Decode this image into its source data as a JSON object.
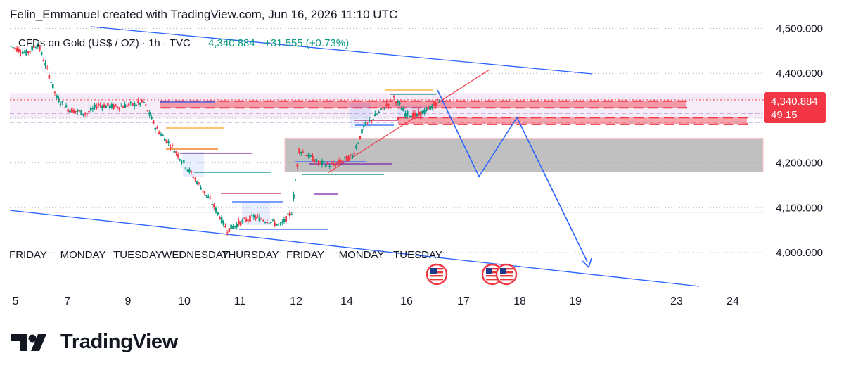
{
  "header": {
    "attribution": "Felin_Emmanuel created with TradingView.com, Jun 16, 2026 11:10 UTC"
  },
  "legend": {
    "symbol": "CFDs on Gold (US$ / OZ) · 1h · TVC",
    "price": "4,340.884",
    "change": "+31.555 (+0.73%)"
  },
  "price_label": {
    "value": "4,340.884",
    "countdown": "49:15"
  },
  "brand": {
    "name": "TradingView"
  },
  "colors": {
    "up": "#089981",
    "down": "#f23645",
    "trendline": "#2962ff",
    "zone_red": "#f23645",
    "zone_gray": "#b2b5be",
    "band_pink": "#f3e5f5"
  },
  "chart_data": {
    "type": "candlestick",
    "y_axis": {
      "ticks": [
        4000,
        4100,
        4200,
        4300,
        4400,
        4500
      ],
      "tick_labels": [
        "4,000.000",
        "4,100.000",
        "4,200.000",
        "",
        "4,400.000",
        "4,500.000"
      ],
      "range": [
        3935,
        4520
      ]
    },
    "x_axis": {
      "dates": [
        "5",
        "7",
        "9",
        "10",
        "11",
        "12",
        "14",
        "16",
        "17",
        "18",
        "19",
        "23",
        "24"
      ],
      "day_names": [
        "FRIDAY",
        "MONDAY",
        "TUESDAY",
        "WEDNESDAY",
        "THURSDAY",
        "FRIDAY",
        "MONDAY",
        "TUESDAY"
      ]
    },
    "last_price": 4340.884,
    "candles_close_path": [
      [
        0,
        4460
      ],
      [
        8,
        4445
      ],
      [
        14,
        4465
      ],
      [
        18,
        4420
      ],
      [
        24,
        4345
      ],
      [
        30,
        4320
      ],
      [
        40,
        4310
      ],
      [
        46,
        4330
      ],
      [
        54,
        4325
      ],
      [
        64,
        4330
      ],
      [
        70,
        4335
      ],
      [
        76,
        4280
      ],
      [
        86,
        4230
      ],
      [
        96,
        4170
      ],
      [
        106,
        4110
      ],
      [
        114,
        4050
      ],
      [
        120,
        4065
      ],
      [
        128,
        4080
      ],
      [
        136,
        4070
      ],
      [
        142,
        4060
      ],
      [
        148,
        4090
      ],
      [
        152,
        4230
      ],
      [
        162,
        4200
      ],
      [
        170,
        4195
      ],
      [
        180,
        4215
      ],
      [
        186,
        4280
      ],
      [
        196,
        4320
      ],
      [
        202,
        4345
      ],
      [
        208,
        4310
      ],
      [
        214,
        4305
      ],
      [
        220,
        4320
      ],
      [
        226,
        4340
      ]
    ],
    "zones": [
      {
        "name": "upper-supply",
        "y1": 4323,
        "y2": 4338
      },
      {
        "name": "lower-supply",
        "y1": 4286,
        "y2": 4301
      },
      {
        "name": "demand",
        "y1": 4180,
        "y2": 4255
      },
      {
        "name": "pink-band",
        "y1": 4299,
        "y2": 4356
      }
    ],
    "horizontal_line": 4090,
    "projection_path": [
      [
        4362,
        "16"
      ],
      [
        4180,
        "17"
      ],
      [
        4300,
        "18"
      ],
      [
        3960,
        "19"
      ]
    ]
  }
}
